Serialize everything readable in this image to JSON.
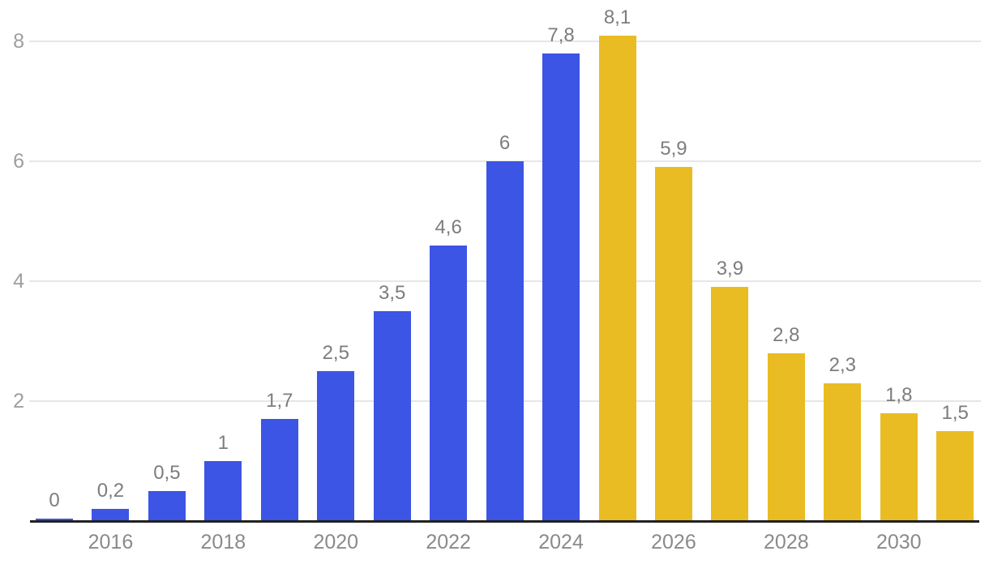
{
  "chart_data": {
    "type": "bar",
    "title": "",
    "bars": [
      {
        "label": "0",
        "value": 0,
        "series": "blue"
      },
      {
        "label": "0,2",
        "value": 0.2,
        "series": "blue"
      },
      {
        "label": "0,5",
        "value": 0.5,
        "series": "blue"
      },
      {
        "label": "1",
        "value": 1,
        "series": "blue"
      },
      {
        "label": "1,7",
        "value": 1.7,
        "series": "blue"
      },
      {
        "label": "2,5",
        "value": 2.5,
        "series": "blue"
      },
      {
        "label": "3,5",
        "value": 3.5,
        "series": "blue"
      },
      {
        "label": "4,6",
        "value": 4.6,
        "series": "blue"
      },
      {
        "label": "6",
        "value": 6,
        "series": "blue"
      },
      {
        "label": "7,8",
        "value": 7.8,
        "series": "blue"
      },
      {
        "label": "8,1",
        "value": 8.1,
        "series": "yellow"
      },
      {
        "label": "5,9",
        "value": 5.9,
        "series": "yellow"
      },
      {
        "label": "3,9",
        "value": 3.9,
        "series": "yellow"
      },
      {
        "label": "2,8",
        "value": 2.8,
        "series": "yellow"
      },
      {
        "label": "2,3",
        "value": 2.3,
        "series": "yellow"
      },
      {
        "label": "1,8",
        "value": 1.8,
        "series": "yellow"
      },
      {
        "label": "1,5",
        "value": 1.5,
        "series": "yellow"
      }
    ],
    "x_axis": {
      "ticks": [
        {
          "label": "2016",
          "bar_index": 1
        },
        {
          "label": "2018",
          "bar_index": 3
        },
        {
          "label": "2020",
          "bar_index": 5
        },
        {
          "label": "2022",
          "bar_index": 7
        },
        {
          "label": "2024",
          "bar_index": 9
        },
        {
          "label": "2026",
          "bar_index": 11
        },
        {
          "label": "2028",
          "bar_index": 13
        },
        {
          "label": "2030",
          "bar_index": 15
        }
      ]
    },
    "y_axis": {
      "ticks": [
        {
          "label": "2",
          "value": 2
        },
        {
          "label": "4",
          "value": 4
        },
        {
          "label": "6",
          "value": 6
        },
        {
          "label": "8",
          "value": 8
        }
      ],
      "range": [
        0,
        8.8
      ]
    },
    "grid": true,
    "legend": null,
    "decimal_separator": ",",
    "colors": {
      "blue": "#3C55E5",
      "yellow": "#EABC23",
      "gridline": "#E6E6E6",
      "axis_line": "#212121",
      "y_tick_text": "#9E9E9E",
      "x_tick_text": "#8A8A8A",
      "data_label_text": "#7D7D7D"
    }
  }
}
